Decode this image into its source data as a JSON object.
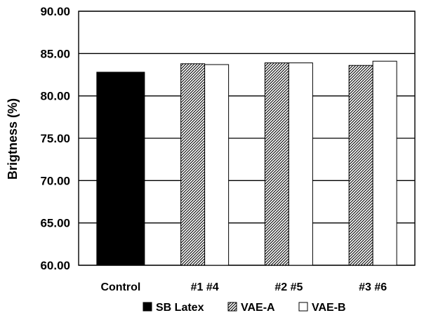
{
  "chart_data": {
    "type": "bar",
    "title": "",
    "xlabel": "",
    "ylabel": "Brigtness (%)",
    "ylim": [
      60,
      90
    ],
    "yticks": [
      "60.00",
      "65.00",
      "70.00",
      "75.00",
      "80.00",
      "85.00",
      "90.00"
    ],
    "ytick_values": [
      60,
      65,
      70,
      75,
      80,
      85,
      90
    ],
    "grid": "horizontal",
    "legend_position": "bottom",
    "groups": [
      {
        "label": "Control",
        "bars": [
          {
            "series": "SB Latex",
            "value": 82.8
          }
        ]
      },
      {
        "label": "#1 #4",
        "bars": [
          {
            "series": "VAE-A",
            "value": 83.8
          },
          {
            "series": "VAE-B",
            "value": 83.7
          }
        ]
      },
      {
        "label": "#2 #5",
        "bars": [
          {
            "series": "VAE-A",
            "value": 83.9
          },
          {
            "series": "VAE-B",
            "value": 83.9
          }
        ]
      },
      {
        "label": "#3 #6",
        "bars": [
          {
            "series": "VAE-A",
            "value": 83.6
          },
          {
            "series": "VAE-B",
            "value": 84.1
          }
        ]
      }
    ],
    "series": [
      {
        "name": "SB Latex",
        "fill": "solid-black"
      },
      {
        "name": "VAE-A",
        "fill": "diagonal-hatch"
      },
      {
        "name": "VAE-B",
        "fill": "white"
      }
    ]
  }
}
